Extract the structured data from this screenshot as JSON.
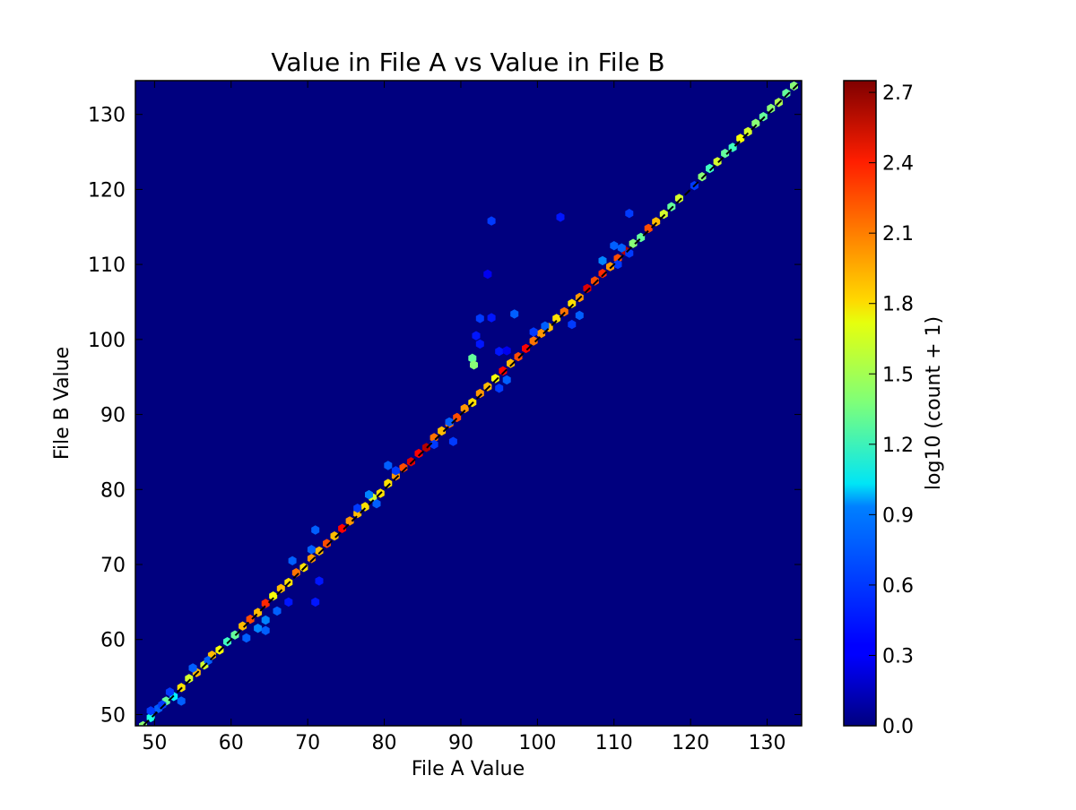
{
  "chart_data": {
    "type": "heatmap",
    "subtype": "hexbin",
    "title": "Value in File A vs Value in File B",
    "xlabel": "File A Value",
    "ylabel": "File B Value",
    "xlim": [
      47.5,
      134.5
    ],
    "ylim": [
      48.5,
      134.5
    ],
    "xticks": [
      50,
      60,
      70,
      80,
      90,
      100,
      110,
      120,
      130
    ],
    "yticks": [
      50,
      60,
      70,
      80,
      90,
      100,
      110,
      120,
      130
    ],
    "background_color": "#00007f",
    "colormap": "jet",
    "grid": false,
    "reference_line": {
      "style": "dashed",
      "color": "#000000",
      "from": [
        47.5,
        47.5
      ],
      "to": [
        134.5,
        134.5
      ]
    },
    "colorbar": {
      "label": "log10 (count + 1)",
      "range": [
        0.0,
        2.75
      ],
      "ticks": [
        "0.0",
        "0.3",
        "0.6",
        "0.9",
        "1.2",
        "1.5",
        "1.8",
        "2.1",
        "2.4",
        "2.7"
      ]
    },
    "diagonal_bins": [
      [
        48.5,
        48.5,
        1.4
      ],
      [
        49.5,
        49.6,
        1.1
      ],
      [
        50.5,
        50.8,
        0.6
      ],
      [
        51.5,
        51.8,
        1.3
      ],
      [
        52.5,
        52.4,
        1.0
      ],
      [
        53.5,
        53.6,
        1.8
      ],
      [
        54.5,
        54.8,
        1.6
      ],
      [
        55.5,
        55.6,
        1.9
      ],
      [
        56.5,
        56.6,
        1.6
      ],
      [
        57.5,
        57.9,
        1.9
      ],
      [
        58.5,
        58.6,
        1.7
      ],
      [
        59.5,
        59.7,
        1.2
      ],
      [
        60.5,
        60.6,
        1.3
      ],
      [
        61.5,
        61.8,
        1.9
      ],
      [
        62.5,
        62.7,
        2.2
      ],
      [
        63.5,
        63.6,
        1.9
      ],
      [
        64.5,
        64.8,
        2.3
      ],
      [
        65.5,
        65.8,
        1.7
      ],
      [
        66.5,
        66.8,
        1.9
      ],
      [
        67.5,
        67.6,
        1.8
      ],
      [
        68.5,
        68.9,
        2.1
      ],
      [
        69.5,
        69.6,
        1.8
      ],
      [
        70.5,
        70.8,
        2.0
      ],
      [
        71.5,
        71.8,
        1.9
      ],
      [
        72.5,
        72.8,
        2.2
      ],
      [
        73.5,
        73.8,
        1.9
      ],
      [
        74.5,
        74.8,
        2.4
      ],
      [
        75.5,
        75.8,
        2.0
      ],
      [
        76.5,
        76.8,
        1.9
      ],
      [
        77.5,
        77.7,
        1.8
      ],
      [
        78.5,
        78.9,
        1.6
      ],
      [
        79.5,
        79.5,
        1.8
      ],
      [
        80.5,
        80.8,
        1.8
      ],
      [
        81.5,
        81.8,
        2.0
      ],
      [
        82.5,
        82.9,
        2.2
      ],
      [
        83.5,
        83.7,
        2.5
      ],
      [
        84.5,
        84.8,
        2.4
      ],
      [
        85.5,
        85.6,
        2.6
      ],
      [
        86.5,
        86.9,
        2.1
      ],
      [
        87.5,
        87.8,
        1.9
      ],
      [
        88.5,
        88.8,
        2.1
      ],
      [
        89.5,
        89.6,
        2.2
      ],
      [
        90.5,
        90.8,
        2.0
      ],
      [
        91.5,
        91.6,
        1.8
      ],
      [
        92.5,
        92.8,
        2.0
      ],
      [
        93.5,
        93.7,
        1.9
      ],
      [
        94.5,
        94.8,
        1.7
      ],
      [
        95.5,
        95.8,
        2.4
      ],
      [
        96.5,
        96.8,
        1.9
      ],
      [
        97.5,
        97.7,
        2.2
      ],
      [
        98.5,
        98.8,
        2.4
      ],
      [
        99.5,
        99.8,
        2.1
      ],
      [
        100.5,
        100.8,
        2.0
      ],
      [
        101.5,
        101.6,
        1.9
      ],
      [
        102.5,
        102.8,
        1.8
      ],
      [
        103.5,
        103.7,
        2.1
      ],
      [
        104.5,
        104.8,
        1.8
      ],
      [
        105.5,
        105.6,
        2.0
      ],
      [
        106.5,
        106.8,
        2.5
      ],
      [
        107.5,
        107.8,
        2.2
      ],
      [
        108.5,
        108.8,
        2.3
      ],
      [
        109.5,
        109.7,
        2.0
      ],
      [
        110.5,
        110.8,
        2.2
      ],
      [
        111.5,
        111.8,
        2.6
      ],
      [
        112.5,
        112.8,
        1.4
      ],
      [
        113.5,
        113.6,
        1.3
      ],
      [
        114.5,
        114.8,
        2.2
      ],
      [
        115.5,
        115.7,
        1.9
      ],
      [
        116.5,
        116.7,
        1.6
      ],
      [
        117.5,
        117.7,
        1.3
      ],
      [
        118.5,
        118.8,
        1.6
      ],
      [
        120.5,
        120.5,
        0.5
      ],
      [
        121.5,
        121.7,
        1.4
      ],
      [
        122.5,
        122.8,
        1.2
      ],
      [
        123.5,
        123.7,
        1.6
      ],
      [
        124.5,
        124.8,
        1.3
      ],
      [
        125.5,
        125.6,
        1.2
      ],
      [
        126.5,
        126.8,
        1.7
      ],
      [
        127.5,
        127.7,
        1.6
      ],
      [
        128.5,
        128.8,
        1.4
      ],
      [
        129.5,
        129.7,
        1.3
      ],
      [
        130.5,
        130.8,
        1.4
      ],
      [
        131.5,
        131.6,
        1.5
      ],
      [
        132.5,
        132.8,
        1.3
      ],
      [
        133.5,
        133.8,
        1.4
      ]
    ],
    "off_diagonal_bins": [
      [
        94.0,
        115.8,
        0.5
      ],
      [
        103.0,
        116.3,
        0.4
      ],
      [
        93.5,
        108.7,
        0.3
      ],
      [
        112.0,
        116.8,
        0.5
      ],
      [
        91.5,
        97.5,
        1.3
      ],
      [
        91.7,
        96.6,
        1.4
      ],
      [
        92.5,
        102.8,
        0.5
      ],
      [
        94.0,
        102.9,
        0.4
      ],
      [
        97.0,
        103.4,
        0.6
      ],
      [
        92.0,
        100.5,
        0.4
      ],
      [
        92.5,
        99.4,
        0.4
      ],
      [
        95.0,
        98.4,
        0.4
      ],
      [
        96.0,
        98.5,
        0.3
      ],
      [
        110.0,
        112.5,
        0.6
      ],
      [
        111.0,
        112.2,
        0.6
      ],
      [
        108.5,
        110.5,
        0.7
      ],
      [
        110.5,
        110.0,
        0.5
      ],
      [
        112.0,
        111.5,
        0.5
      ],
      [
        101.0,
        101.8,
        0.6
      ],
      [
        99.5,
        101.0,
        0.5
      ],
      [
        105.5,
        103.2,
        0.6
      ],
      [
        104.5,
        102.0,
        0.5
      ],
      [
        96.0,
        94.6,
        0.6
      ],
      [
        95.0,
        93.5,
        0.5
      ],
      [
        88.5,
        89.0,
        0.6
      ],
      [
        86.5,
        86.0,
        0.5
      ],
      [
        89.0,
        86.4,
        0.5
      ],
      [
        80.5,
        83.2,
        0.6
      ],
      [
        81.5,
        82.5,
        0.5
      ],
      [
        79.0,
        78.1,
        0.6
      ],
      [
        78.0,
        79.3,
        0.7
      ],
      [
        76.5,
        77.5,
        0.5
      ],
      [
        71.0,
        74.6,
        0.6
      ],
      [
        70.5,
        72.0,
        0.6
      ],
      [
        71.5,
        67.8,
        0.4
      ],
      [
        71.0,
        65.0,
        0.4
      ],
      [
        67.5,
        65.0,
        0.4
      ],
      [
        68.0,
        70.5,
        0.6
      ],
      [
        66.0,
        63.8,
        0.6
      ],
      [
        64.5,
        62.6,
        0.7
      ],
      [
        63.5,
        61.5,
        0.7
      ],
      [
        64.5,
        61.2,
        0.6
      ],
      [
        62.0,
        60.2,
        0.6
      ],
      [
        57.0,
        57.2,
        0.6
      ],
      [
        55.0,
        56.2,
        0.6
      ],
      [
        53.5,
        51.8,
        0.6
      ],
      [
        52.0,
        53.0,
        0.5
      ],
      [
        49.5,
        50.5,
        0.5
      ],
      [
        51.0,
        51.3,
        0.5
      ]
    ]
  }
}
